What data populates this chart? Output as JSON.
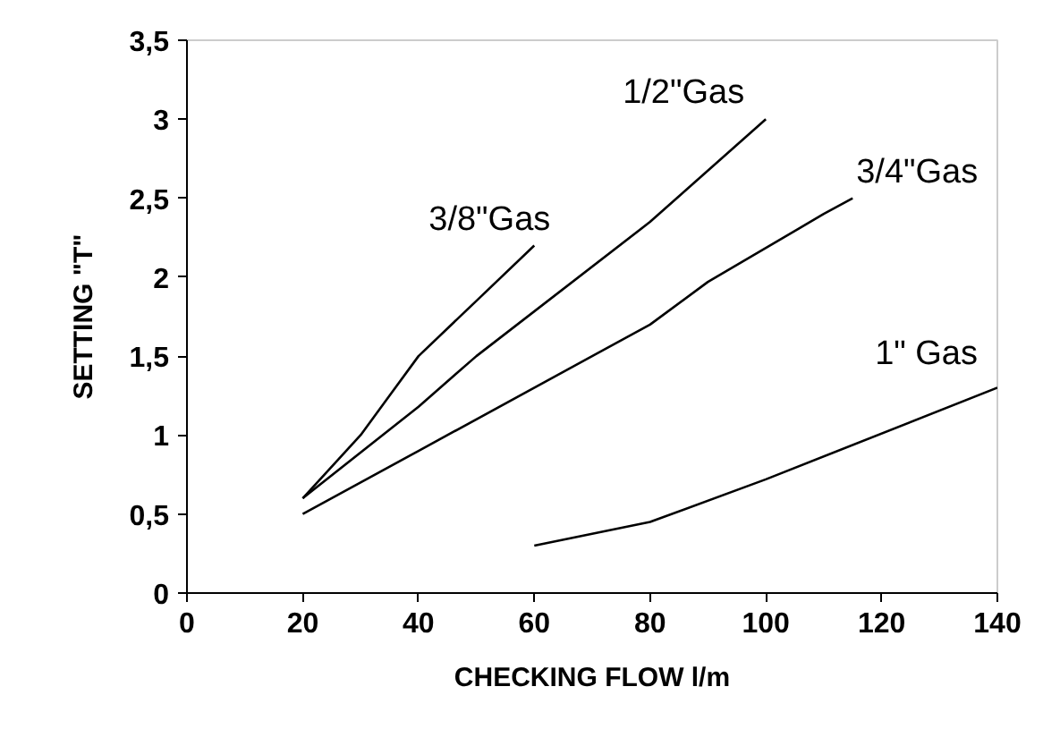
{
  "chart_data": {
    "type": "line",
    "xlabel": "CHECKING FLOW l/m",
    "ylabel": "SETTING \"T\"",
    "xlim": [
      0,
      140
    ],
    "xticks": [
      0,
      20,
      40,
      60,
      80,
      100,
      120,
      140
    ],
    "ylim": [
      0,
      3.5
    ],
    "yticks": [
      0,
      {
        "value": 0.5,
        "label": "0,5"
      },
      1,
      {
        "value": 1.5,
        "label": "1,5"
      },
      2,
      {
        "value": 2.5,
        "label": "2,5"
      },
      3,
      {
        "value": 3.5,
        "label": "3,5"
      }
    ],
    "grid": false,
    "series": [
      {
        "name": "3/8\"Gas",
        "color": "#000000",
        "x": [
          20,
          30,
          35,
          40,
          50,
          60
        ],
        "values": [
          0.6,
          1.0,
          1.25,
          1.5,
          1.85,
          2.2
        ]
      },
      {
        "name": "1/2\"Gas",
        "color": "#000000",
        "x": [
          20,
          40,
          50,
          80,
          100
        ],
        "values": [
          0.6,
          1.18,
          1.5,
          2.35,
          3.0
        ]
      },
      {
        "name": "3/4\"Gas",
        "color": "#000000",
        "x": [
          20,
          40,
          70,
          80,
          90,
          110,
          115
        ],
        "values": [
          0.5,
          0.9,
          1.5,
          1.7,
          1.97,
          2.4,
          2.5
        ]
      },
      {
        "name": "1\" Gas",
        "color": "#000000",
        "x": [
          60,
          80,
          100,
          140
        ],
        "values": [
          0.3,
          0.45,
          0.72,
          1.3
        ]
      }
    ]
  }
}
